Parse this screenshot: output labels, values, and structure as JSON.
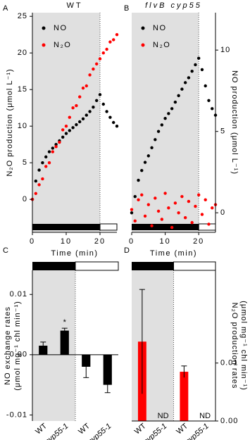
{
  "chart_data": [
    {
      "type": "scatter",
      "panel": "A",
      "title": "WT",
      "title_style": "normal",
      "xlabel": "Time (min)",
      "ylabel": [
        "N₂O production (μmol L⁻¹)"
      ],
      "yaxis": "left",
      "legend": "upper left",
      "x": [
        0,
        1,
        2,
        3,
        4,
        5,
        6,
        7,
        8,
        9,
        10,
        11,
        12,
        13,
        14,
        15,
        16,
        17,
        18,
        19,
        20,
        21,
        22,
        23,
        24,
        25
      ],
      "xlim": [
        0,
        25
      ],
      "xticks": [
        0,
        10,
        20
      ],
      "ylim": [
        -4.5,
        25.5
      ],
      "yticks": [
        0,
        5,
        10,
        15,
        20,
        25
      ],
      "shaded_x": [
        0,
        20
      ],
      "series": [
        {
          "name": "NO",
          "color": "#000000",
          "values": [
            0,
            2.5,
            4,
            5,
            5.8,
            6.5,
            7,
            7.5,
            8,
            8.5,
            9,
            9.4,
            9.8,
            10.2,
            10.6,
            11,
            11.5,
            12,
            12.6,
            13.5,
            14.3,
            13,
            12,
            11.2,
            10.5,
            10
          ]
        },
        {
          "name": "N₂O",
          "color": "#ff0000",
          "values": [
            0,
            0.8,
            2,
            2.8,
            4.5,
            5,
            6.5,
            7.2,
            7.8,
            9.5,
            10,
            11.2,
            12.5,
            12.8,
            14,
            15.2,
            15.5,
            17,
            17.8,
            18.5,
            19.2,
            20,
            20.5,
            21.5,
            21.8,
            22.5
          ]
        }
      ]
    },
    {
      "type": "scatter",
      "panel": "B",
      "title": "flvB cyp55",
      "title_style": "italic",
      "xlabel": "Time (min)",
      "ylabel": [
        "NO production (μmol L⁻¹)"
      ],
      "yaxis": "right",
      "legend": "upper left",
      "x": [
        0,
        1,
        2,
        3,
        4,
        5,
        6,
        7,
        8,
        9,
        10,
        11,
        12,
        13,
        14,
        15,
        16,
        17,
        18,
        19,
        20,
        21,
        22,
        23,
        24,
        25
      ],
      "xlim": [
        0,
        25
      ],
      "xticks": [
        0,
        10,
        20
      ],
      "ylim": [
        -1.2,
        12.3
      ],
      "yticks": [
        0,
        5,
        10
      ],
      "shaded_x": [
        0,
        20
      ],
      "series": [
        {
          "name": "NO",
          "color": "#000000",
          "values": [
            0,
            1,
            2,
            2.6,
            3.1,
            3.5,
            4,
            4.5,
            5,
            5.4,
            5.8,
            6.1,
            6.4,
            6.8,
            7.2,
            7.6,
            8,
            8.3,
            8.7,
            9.1,
            9.5,
            8.8,
            7.8,
            6.9,
            6.4,
            6
          ]
        },
        {
          "name": "N₂O",
          "color": "#ff0000",
          "values": [
            0.2,
            -0.5,
            0.8,
            1.1,
            -0.2,
            0.5,
            -0.8,
            0.9,
            0.1,
            -0.4,
            1.2,
            0.3,
            -0.9,
            0.6,
            0,
            1,
            -0.3,
            0.7,
            -0.6,
            0.4,
            1.1,
            -0.1,
            0.8,
            -0.7,
            0.3,
            0.5
          ]
        }
      ]
    },
    {
      "type": "bar",
      "panel": "C",
      "ylabel": [
        "NO exchange rates",
        "(μmol mg⁻¹ chl min⁻¹)"
      ],
      "yaxis": "left",
      "categories": [
        "WT",
        "flvB cyp55-1",
        "WT",
        "flvB cyp55-1"
      ],
      "values": [
        0.0015,
        0.004,
        -0.002,
        -0.005
      ],
      "errors": [
        0.0006,
        0.0004,
        0.0018,
        0.0013
      ],
      "significance": [
        null,
        "*",
        null,
        null
      ],
      "color": "#000000",
      "ylim": [
        -0.011,
        0.014
      ],
      "yticks": [
        {
          "value": -0.01,
          "label": "-0.01"
        },
        {
          "value": 0,
          "label": "0.00"
        },
        {
          "value": 0.01,
          "label": "0.01"
        }
      ]
    },
    {
      "type": "bar",
      "panel": "D",
      "ylabel": [
        "N₂O production rates",
        "(μmol mg⁻¹ chl min⁻¹)"
      ],
      "yaxis": "right",
      "categories": [
        "WT",
        "flvB cyp55-1",
        "WT",
        "flvB cyp55-1"
      ],
      "values": [
        0.0137,
        null,
        0.0085,
        null
      ],
      "errors": [
        0.009,
        null,
        0.001,
        null
      ],
      "value_labels": [
        null,
        "ND",
        null,
        "ND"
      ],
      "color": "#ff0000",
      "ylim": [
        0,
        0.026
      ],
      "yticks": [
        {
          "value": 0,
          "label": "0.00"
        },
        {
          "value": 0.01,
          "label": "0.01"
        }
      ]
    }
  ]
}
